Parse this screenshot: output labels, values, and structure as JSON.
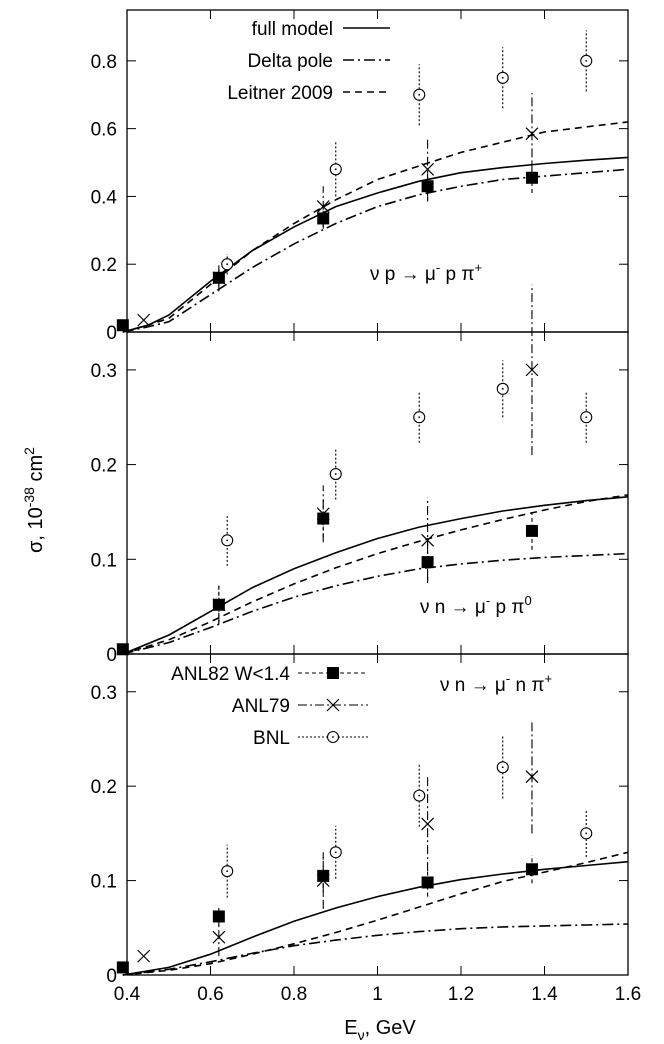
{
  "figure": {
    "ylabel": "σ, 10",
    "ylabel_exp": "-38",
    "ylabel_unit": " cm",
    "ylabel_unit_exp": "2",
    "xlabel_main": "E",
    "xlabel_sub": "ν",
    "xlabel_rest": ", GeV",
    "x_ticks": [
      "0.4",
      "0.6",
      "0.8",
      "1",
      "1.2",
      "1.4",
      "1.6"
    ],
    "x_values": [
      0.4,
      0.6,
      0.8,
      1.0,
      1.2,
      1.4,
      1.6
    ],
    "xlim": [
      0.4,
      1.6
    ],
    "grid": false
  },
  "theory_legend": {
    "entries": [
      {
        "label": "full model",
        "style": "solid"
      },
      {
        "label": "Delta pole",
        "style": "dashdot"
      },
      {
        "label": "Leitner 2009",
        "style": "dashed"
      }
    ]
  },
  "experiment_legend": {
    "entries": [
      {
        "label": "ANL82 W<1.4",
        "marker": "filled-square"
      },
      {
        "label": "ANL79",
        "marker": "cross"
      },
      {
        "label": "BNL",
        "marker": "open-circle"
      }
    ]
  },
  "chart_data": [
    {
      "type": "line",
      "channel_label": {
        "nu": "ν",
        "prefix": " p → μ",
        "lepton_sup": "-",
        "mid": " p π",
        "pion_sup": "+"
      },
      "ylim": [
        0,
        0.95
      ],
      "y_ticks": [
        0,
        0.2,
        0.4,
        0.6,
        0.8
      ],
      "y_tick_labels": [
        "0",
        "0.2",
        "0.4",
        "0.6",
        "0.8"
      ],
      "series": [
        {
          "name": "full model",
          "style": "solid",
          "x": [
            0.39,
            0.45,
            0.5,
            0.6,
            0.7,
            0.8,
            0.9,
            1.0,
            1.1,
            1.2,
            1.3,
            1.4,
            1.5,
            1.6
          ],
          "y": [
            0.0,
            0.02,
            0.05,
            0.15,
            0.24,
            0.31,
            0.37,
            0.41,
            0.445,
            0.47,
            0.485,
            0.497,
            0.507,
            0.515
          ]
        },
        {
          "name": "Delta pole",
          "style": "dashdot",
          "x": [
            0.39,
            0.45,
            0.5,
            0.6,
            0.7,
            0.8,
            0.9,
            1.0,
            1.1,
            1.2,
            1.3,
            1.4,
            1.5,
            1.6
          ],
          "y": [
            0.0,
            0.015,
            0.03,
            0.11,
            0.19,
            0.26,
            0.32,
            0.37,
            0.405,
            0.43,
            0.45,
            0.46,
            0.47,
            0.48
          ]
        },
        {
          "name": "Leitner 2009",
          "style": "dashed",
          "x": [
            0.39,
            0.45,
            0.5,
            0.6,
            0.7,
            0.8,
            0.9,
            1.0,
            1.1,
            1.2,
            1.3,
            1.4,
            1.5,
            1.6
          ],
          "y": [
            0.0,
            0.02,
            0.04,
            0.14,
            0.24,
            0.32,
            0.39,
            0.45,
            0.49,
            0.53,
            0.56,
            0.59,
            0.605,
            0.62
          ]
        },
        {
          "name": "ANL82 W<1.4",
          "marker": "filled-square",
          "x": [
            0.39,
            0.62,
            0.87,
            1.12,
            1.37
          ],
          "y": [
            0.02,
            0.16,
            0.335,
            0.43,
            0.455
          ],
          "err": [
            0.005,
            0.025,
            0.03,
            0.045,
            0.045
          ]
        },
        {
          "name": "ANL79",
          "marker": "cross",
          "x": [
            0.44,
            0.62,
            0.87,
            1.12,
            1.37
          ],
          "y": [
            0.035,
            0.16,
            0.37,
            0.48,
            0.585
          ],
          "err": [
            0.0,
            0.04,
            0.06,
            0.09,
            0.12
          ]
        },
        {
          "name": "BNL",
          "marker": "open-circle",
          "x": [
            0.64,
            0.9,
            1.1,
            1.3,
            1.5
          ],
          "y": [
            0.2,
            0.48,
            0.7,
            0.75,
            0.8
          ],
          "err": [
            0.03,
            0.08,
            0.09,
            0.09,
            0.09
          ]
        }
      ]
    },
    {
      "type": "line",
      "channel_label": {
        "nu": "ν",
        "prefix": " n → μ",
        "lepton_sup": "-",
        "mid": " p π",
        "pion_sup": "0"
      },
      "ylim": [
        0,
        0.34
      ],
      "y_ticks": [
        0,
        0.1,
        0.2,
        0.3
      ],
      "y_tick_labels": [
        "0",
        "0.1",
        "0.2",
        "0.3"
      ],
      "series": [
        {
          "name": "full model",
          "style": "solid",
          "x": [
            0.39,
            0.5,
            0.6,
            0.7,
            0.8,
            0.9,
            1.0,
            1.1,
            1.2,
            1.3,
            1.4,
            1.5,
            1.6
          ],
          "y": [
            0.0,
            0.02,
            0.045,
            0.07,
            0.09,
            0.107,
            0.122,
            0.134,
            0.143,
            0.151,
            0.157,
            0.162,
            0.166
          ]
        },
        {
          "name": "Delta pole",
          "style": "dashdot",
          "x": [
            0.39,
            0.5,
            0.6,
            0.7,
            0.8,
            0.9,
            1.0,
            1.1,
            1.2,
            1.3,
            1.4,
            1.5,
            1.6
          ],
          "y": [
            0.0,
            0.012,
            0.028,
            0.045,
            0.06,
            0.072,
            0.082,
            0.09,
            0.095,
            0.099,
            0.102,
            0.104,
            0.106
          ]
        },
        {
          "name": "Leitner 2009",
          "style": "dashed",
          "x": [
            0.39,
            0.5,
            0.6,
            0.7,
            0.8,
            0.9,
            1.0,
            1.1,
            1.2,
            1.3,
            1.4,
            1.5,
            1.6
          ],
          "y": [
            0.0,
            0.015,
            0.034,
            0.055,
            0.074,
            0.091,
            0.106,
            0.119,
            0.131,
            0.142,
            0.152,
            0.161,
            0.168
          ]
        },
        {
          "name": "ANL82 W<1.4",
          "marker": "filled-square",
          "x": [
            0.39,
            0.62,
            0.87,
            1.12,
            1.37
          ],
          "y": [
            0.005,
            0.052,
            0.143,
            0.097,
            0.13
          ],
          "err": [
            0.003,
            0.02,
            0.02,
            0.02,
            0.02
          ]
        },
        {
          "name": "ANL79",
          "marker": "cross",
          "x": [
            0.62,
            0.87,
            1.12,
            1.37
          ],
          "y": [
            0.052,
            0.148,
            0.12,
            0.3
          ],
          "err": [
            0.02,
            0.03,
            0.045,
            0.09
          ]
        },
        {
          "name": "BNL",
          "marker": "open-circle",
          "x": [
            0.64,
            0.9,
            1.1,
            1.3,
            1.5
          ],
          "y": [
            0.12,
            0.19,
            0.25,
            0.28,
            0.25
          ],
          "err": [
            0.027,
            0.027,
            0.027,
            0.03,
            0.027
          ]
        }
      ]
    },
    {
      "type": "line",
      "channel_label": {
        "nu": "ν",
        "prefix": " n → μ",
        "lepton_sup": "-",
        "mid": " n π",
        "pion_sup": "+"
      },
      "ylim": [
        0,
        0.34
      ],
      "y_ticks": [
        0,
        0.1,
        0.2,
        0.3
      ],
      "y_tick_labels": [
        "0",
        "0.1",
        "0.2",
        "0.3"
      ],
      "series": [
        {
          "name": "full model",
          "style": "solid",
          "x": [
            0.39,
            0.5,
            0.6,
            0.7,
            0.8,
            0.9,
            1.0,
            1.1,
            1.2,
            1.3,
            1.4,
            1.5,
            1.6
          ],
          "y": [
            0.0,
            0.008,
            0.022,
            0.04,
            0.057,
            0.071,
            0.083,
            0.093,
            0.101,
            0.107,
            0.112,
            0.116,
            0.12
          ]
        },
        {
          "name": "Delta pole",
          "style": "dashdot",
          "x": [
            0.39,
            0.5,
            0.6,
            0.7,
            0.8,
            0.9,
            1.0,
            1.1,
            1.2,
            1.3,
            1.4,
            1.5,
            1.6
          ],
          "y": [
            0.0,
            0.006,
            0.014,
            0.023,
            0.031,
            0.037,
            0.042,
            0.046,
            0.049,
            0.051,
            0.052,
            0.053,
            0.054
          ]
        },
        {
          "name": "Leitner 2009",
          "style": "dashed",
          "x": [
            0.39,
            0.5,
            0.6,
            0.7,
            0.8,
            0.9,
            1.0,
            1.1,
            1.2,
            1.3,
            1.4,
            1.5,
            1.6
          ],
          "y": [
            0.0,
            0.005,
            0.012,
            0.022,
            0.033,
            0.045,
            0.058,
            0.072,
            0.086,
            0.099,
            0.109,
            0.119,
            0.13
          ]
        },
        {
          "name": "ANL82 W<1.4",
          "marker": "filled-square",
          "x": [
            0.39,
            0.62,
            0.87,
            1.12,
            1.37
          ],
          "y": [
            0.008,
            0.062,
            0.105,
            0.098,
            0.112
          ],
          "err": [
            0.003,
            0.01,
            0.02,
            0.015,
            0.015
          ]
        },
        {
          "name": "ANL79",
          "marker": "cross",
          "x": [
            0.44,
            0.62,
            0.87,
            1.12,
            1.37
          ],
          "y": [
            0.02,
            0.04,
            0.1,
            0.16,
            0.21
          ],
          "err": [
            0.0,
            0.02,
            0.03,
            0.05,
            0.06
          ]
        },
        {
          "name": "BNL",
          "marker": "open-circle",
          "x": [
            0.64,
            0.9,
            1.1,
            1.3,
            1.5
          ],
          "y": [
            0.11,
            0.13,
            0.19,
            0.22,
            0.15
          ],
          "err": [
            0.028,
            0.028,
            0.033,
            0.033,
            0.025
          ]
        }
      ]
    }
  ]
}
